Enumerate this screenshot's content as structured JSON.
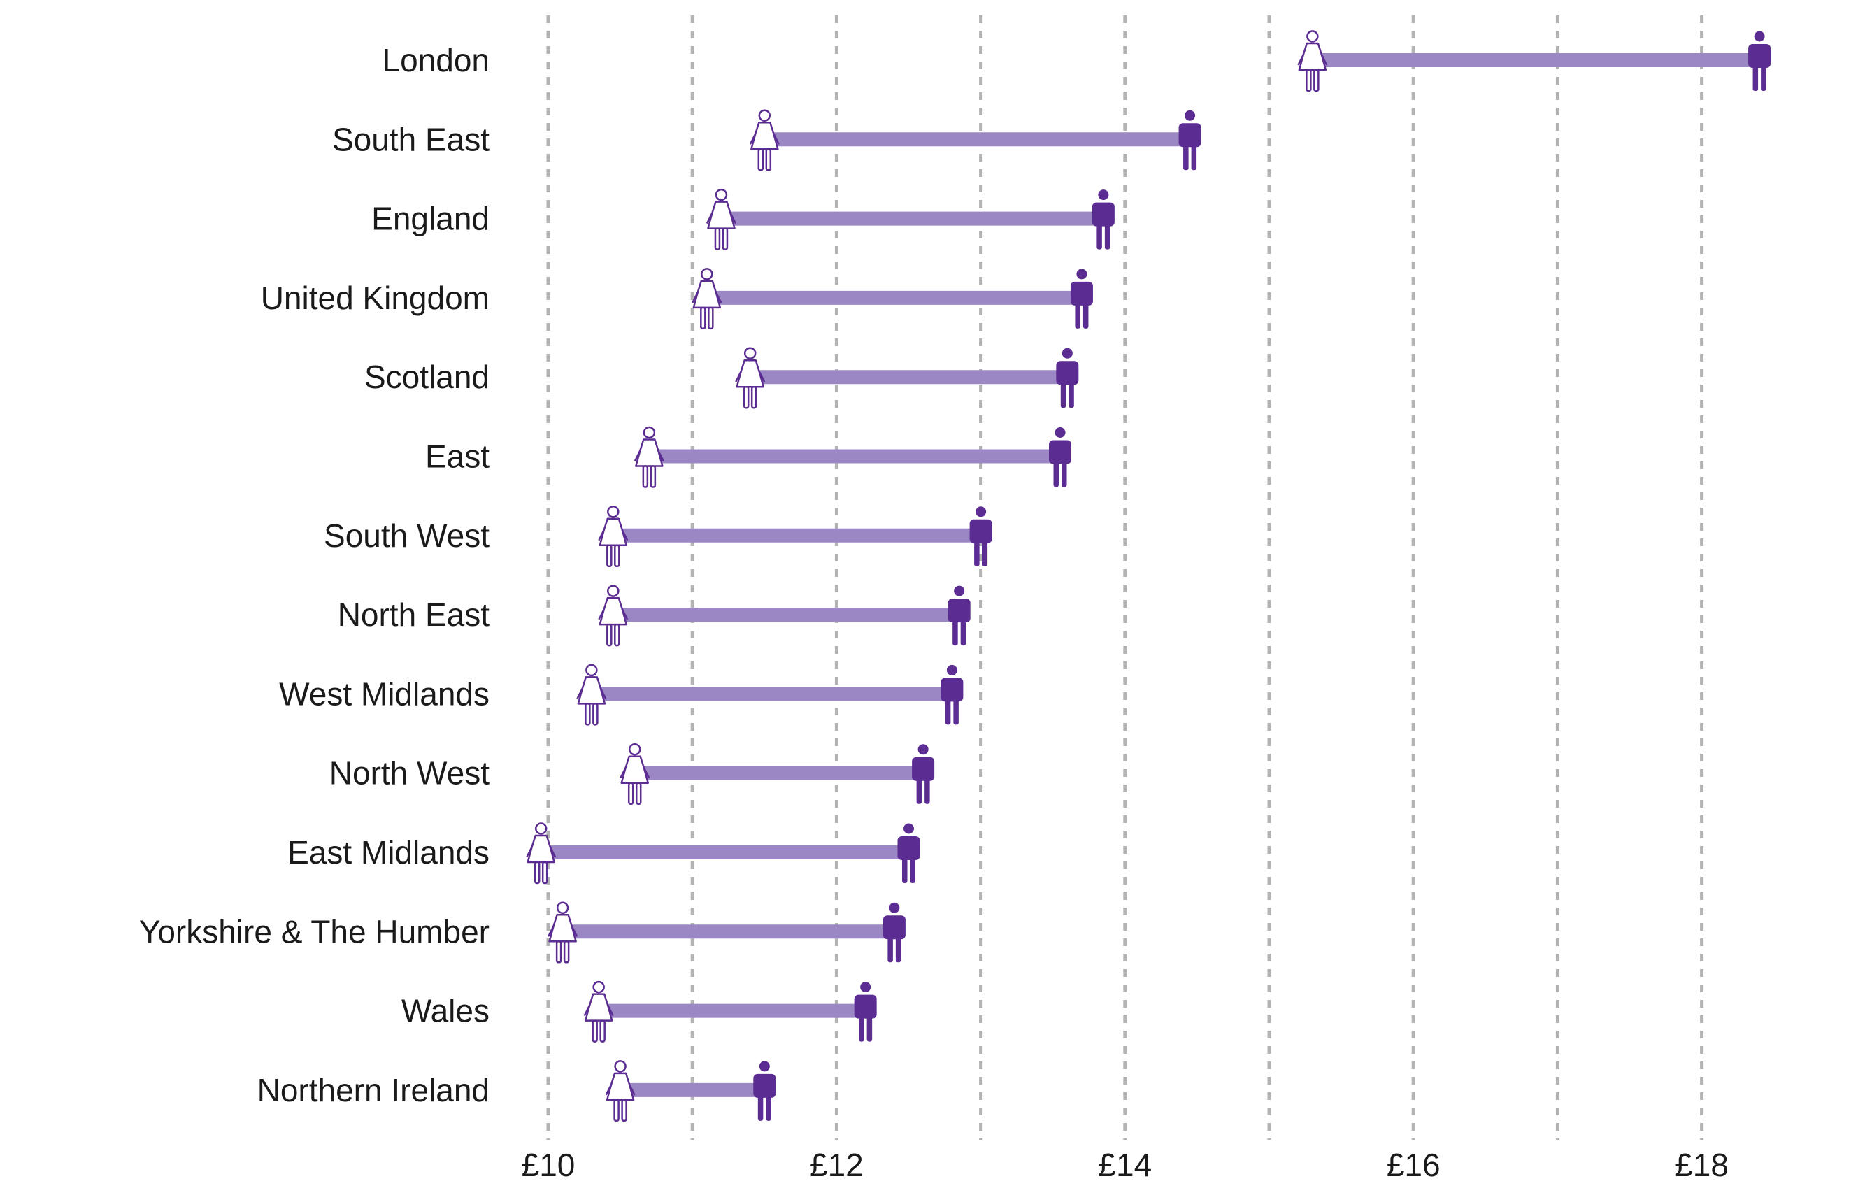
{
  "chart_data": {
    "type": "dumbbell",
    "title": "",
    "xlabel": "",
    "ylabel": "",
    "xlim": [
      10,
      18.5
    ],
    "grid": {
      "vertical": true,
      "style": "dashed"
    },
    "x_ticks": [
      {
        "value": 10,
        "label": "£10"
      },
      {
        "value": 12,
        "label": "£12"
      },
      {
        "value": 14,
        "label": "£14"
      },
      {
        "value": 16,
        "label": "£16"
      },
      {
        "value": 18,
        "label": "£18"
      }
    ],
    "x_gridlines": [
      10,
      11,
      12,
      13,
      14,
      15,
      16,
      17,
      18
    ],
    "categories": [
      "London",
      "South East",
      "England",
      "United Kingdom",
      "Scotland",
      "East",
      "South West",
      "North East",
      "West Midlands",
      "North West",
      "East Midlands",
      "Yorkshire & The Humber",
      "Wales",
      "Northern Ireland"
    ],
    "series": [
      {
        "key": "women",
        "icon": "woman-icon",
        "values": [
          15.3,
          11.5,
          11.2,
          11.1,
          11.4,
          10.7,
          10.45,
          10.45,
          10.3,
          10.6,
          9.95,
          10.1,
          10.35,
          10.5
        ]
      },
      {
        "key": "men",
        "icon": "man-icon",
        "values": [
          18.4,
          14.45,
          13.85,
          13.7,
          13.6,
          13.55,
          13.0,
          12.85,
          12.8,
          12.6,
          12.5,
          12.4,
          12.2,
          11.5
        ]
      }
    ],
    "colors": {
      "connector": "#9b87c4",
      "man": "#5b2c91",
      "woman_outline": "#5b2c91",
      "woman_fill": "#ffffff",
      "grid": "#b3b3b3",
      "text": "#1a1a1a"
    }
  }
}
